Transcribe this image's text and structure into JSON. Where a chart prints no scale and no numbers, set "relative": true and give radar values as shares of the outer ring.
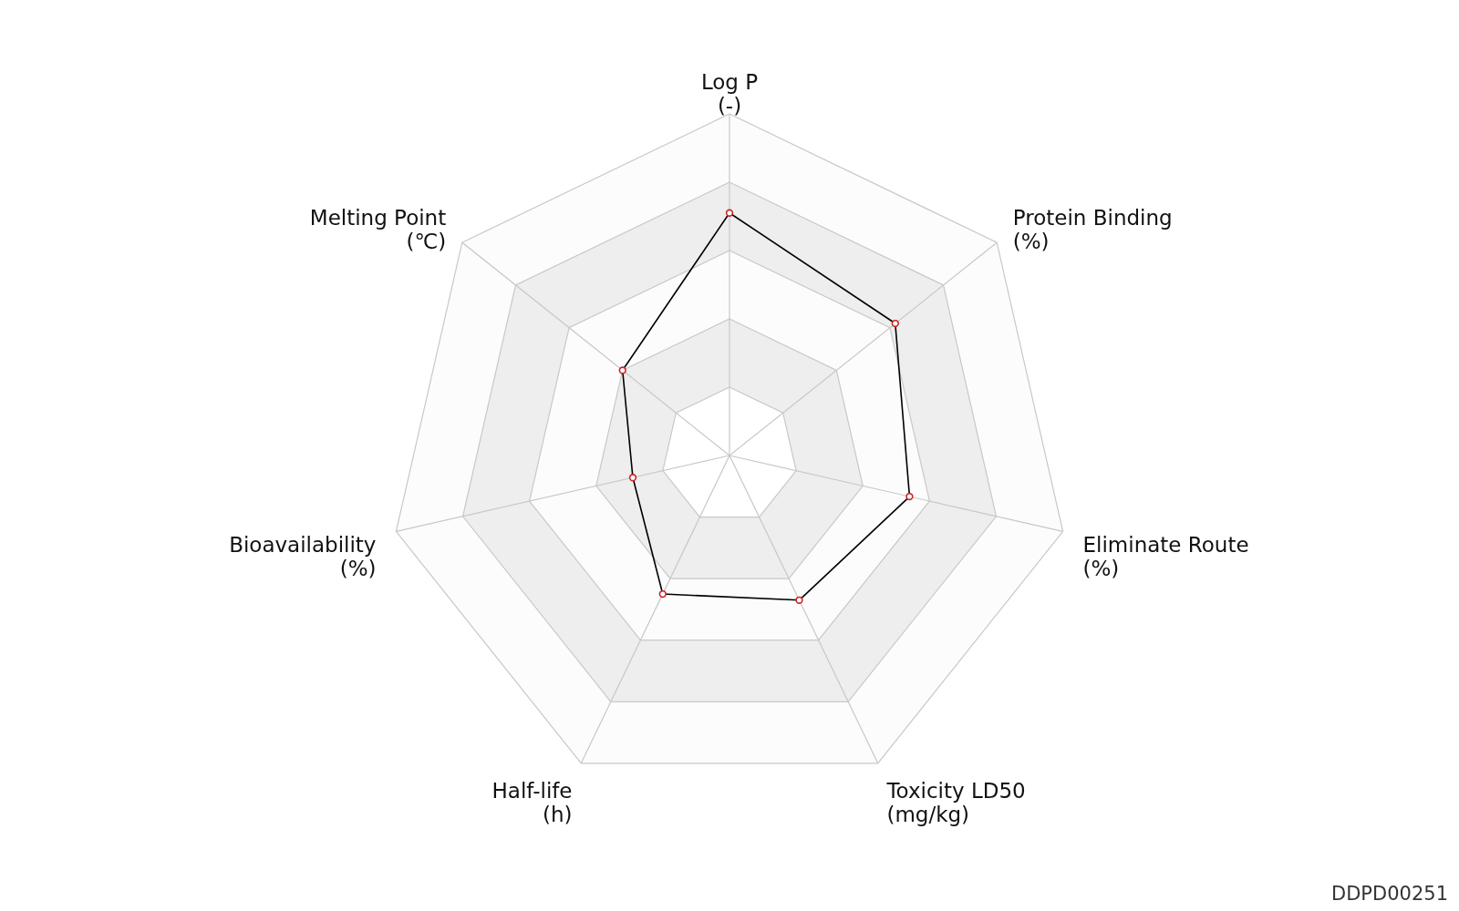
{
  "chart_data": {
    "type": "radar",
    "relative": true,
    "grid": true,
    "marker": "circle",
    "line_style": "solid",
    "categories": [
      "Log P\n(-)",
      "Protein Binding\n(%)",
      "Eliminate Route\n(%)",
      "Toxicity LD50\n(mg/kg)",
      "Half-life\n(h)",
      "Bioavailability\n(%)",
      "Melting Point\n(℃)"
    ],
    "series": [
      {
        "color": "#000000",
        "values": [
          0.71,
          0.62,
          0.54,
          0.47,
          0.45,
          0.29,
          0.4
        ]
      }
    ],
    "annotations": [
      "DDPD00251"
    ]
  }
}
